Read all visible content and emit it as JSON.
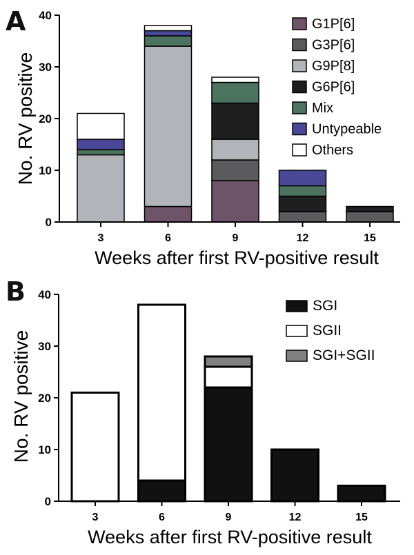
{
  "chart_data": [
    {
      "type": "bar",
      "stacked": true,
      "panel_label": "A",
      "title": "",
      "xlabel": "Weeks after first RV-positive result",
      "ylabel": "No. RV positive",
      "categories": [
        "3",
        "6",
        "9",
        "12",
        "15"
      ],
      "ylim": [
        0,
        40
      ],
      "yticks": [
        0,
        10,
        20,
        30,
        40
      ],
      "grid": false,
      "legend_position": "top-right",
      "series": [
        {
          "name": "G1P[6]",
          "color": "#6e5468",
          "values": [
            0,
            3,
            8,
            0,
            0
          ]
        },
        {
          "name": "G3P[6]",
          "color": "#5b5b5e",
          "values": [
            0,
            0,
            4,
            2,
            2
          ]
        },
        {
          "name": "G9P[8]",
          "color": "#b3b3ba",
          "values": [
            13,
            31,
            4,
            0,
            0
          ]
        },
        {
          "name": "G6P[6]",
          "color": "#1e1e1e",
          "values": [
            0,
            0,
            7,
            3,
            1
          ]
        },
        {
          "name": "Mix",
          "color": "#4b735f",
          "values": [
            1,
            2,
            4,
            2,
            0
          ]
        },
        {
          "name": "Untypeable",
          "color": "#4a4796",
          "values": [
            2,
            1,
            0,
            3,
            0
          ]
        },
        {
          "name": "Others",
          "color": "#ffffff",
          "values": [
            5,
            1,
            1,
            0,
            0
          ]
        }
      ]
    },
    {
      "type": "bar",
      "stacked": true,
      "panel_label": "B",
      "title": "",
      "xlabel": "Weeks after first RV-positive result",
      "ylabel": "No. RV positive",
      "categories": [
        "3",
        "6",
        "9",
        "12",
        "15"
      ],
      "ylim": [
        0,
        40
      ],
      "yticks": [
        0,
        10,
        20,
        30,
        40
      ],
      "grid": false,
      "legend_position": "top-right",
      "series": [
        {
          "name": "SGI",
          "color": "#111111",
          "values": [
            0,
            4,
            22,
            10,
            3
          ]
        },
        {
          "name": "SGII",
          "color": "#ffffff",
          "values": [
            21,
            34,
            4,
            0,
            0
          ]
        },
        {
          "name": "SGI+SGII",
          "color": "#808080",
          "values": [
            0,
            0,
            2,
            0,
            0
          ]
        }
      ]
    }
  ]
}
